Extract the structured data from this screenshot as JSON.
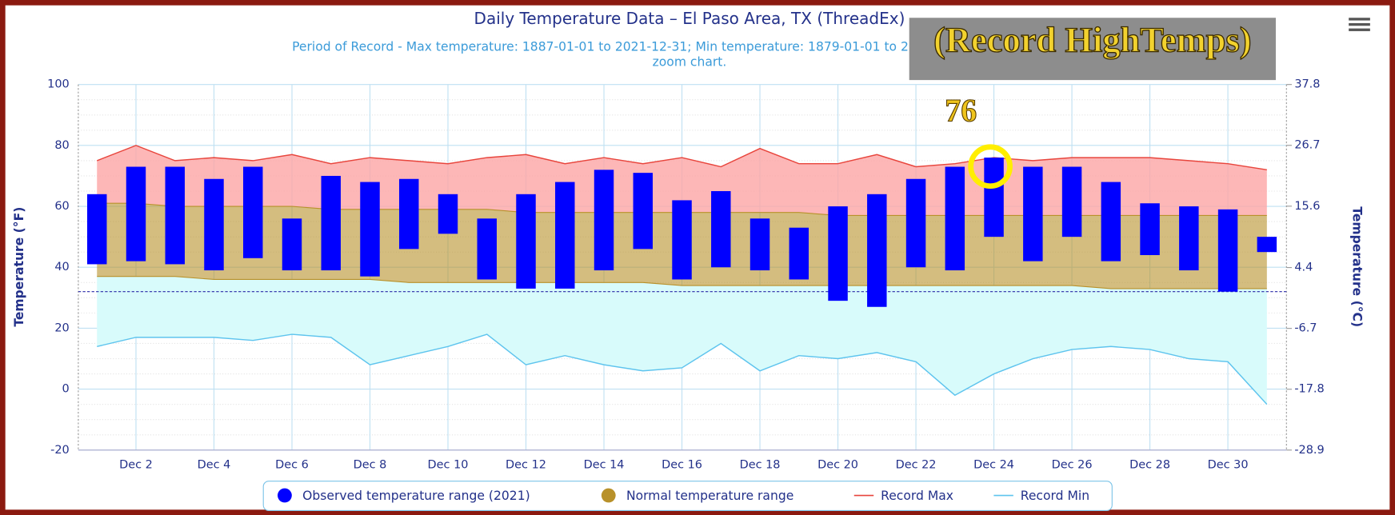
{
  "chart_data": {
    "type": "range",
    "title": "Daily Temperature Data – El Paso Area, TX (ThreadEx)",
    "subtitle": [
      "Period of Record - Max temperature: 1887-01-01 to 2021-12-31; Min temperature: 1879-01-01 to 2021-12-31. Click and drag to",
      "zoom chart."
    ],
    "y_label": "Temperature (°F)",
    "y2_label": "Temperature (°C)",
    "categories": [
      null,
      "Dec 2",
      null,
      "Dec 4",
      null,
      "Dec 6",
      null,
      "Dec 8",
      null,
      "Dec 10",
      null,
      "Dec 12",
      null,
      "Dec 14",
      null,
      "Dec 16",
      null,
      "Dec 18",
      null,
      "Dec 20",
      null,
      "Dec 22",
      null,
      "Dec 24",
      null,
      "Dec 26",
      null,
      "Dec 28",
      null,
      "Dec 30",
      null
    ],
    "ylim": [
      -20,
      100
    ],
    "yticks": [
      -20,
      0,
      20,
      40,
      60,
      80,
      100
    ],
    "y2lim": [
      -28.9,
      37.8
    ],
    "y2ticks": [
      -28.9,
      -17.8,
      -6.7,
      4.4,
      15.6,
      26.7,
      37.8
    ],
    "freeze_line": 32,
    "grid": true,
    "legend": "bottom",
    "series": [
      {
        "name": "Observed temperature range (2021)",
        "color": "#0000ff",
        "low": [
          41,
          42,
          41,
          39,
          43,
          39,
          39,
          37,
          46,
          51,
          36,
          33,
          33,
          39,
          46,
          36,
          40,
          39,
          36,
          29,
          27,
          40,
          39,
          50,
          42,
          50,
          42,
          44,
          39,
          32,
          45
        ],
        "high": [
          64,
          73,
          73,
          69,
          73,
          56,
          70,
          68,
          69,
          64,
          56,
          64,
          68,
          72,
          71,
          62,
          65,
          56,
          53,
          60,
          64,
          69,
          73,
          76,
          73,
          73,
          68,
          61,
          60,
          59,
          50
        ]
      },
      {
        "name": "Normal temperature range",
        "color": "#b8912a",
        "low": [
          37,
          37,
          37,
          36,
          36,
          36,
          36,
          36,
          35,
          35,
          35,
          35,
          35,
          35,
          35,
          34,
          34,
          34,
          34,
          34,
          34,
          34,
          34,
          34,
          34,
          34,
          33,
          33,
          33,
          33,
          33
        ],
        "high": [
          61,
          61,
          60,
          60,
          60,
          60,
          59,
          59,
          59,
          59,
          59,
          58,
          58,
          58,
          58,
          58,
          58,
          58,
          58,
          57,
          57,
          57,
          57,
          57,
          57,
          57,
          57,
          57,
          57,
          57,
          57
        ]
      },
      {
        "name": "Record Max",
        "color": "#e8453c",
        "values": [
          75,
          80,
          75,
          76,
          75,
          77,
          74,
          76,
          75,
          74,
          76,
          77,
          74,
          76,
          74,
          76,
          73,
          79,
          74,
          74,
          77,
          73,
          74,
          76,
          75,
          76,
          76,
          76,
          75,
          74,
          72
        ]
      },
      {
        "name": "Record Min",
        "color": "#5ec4ee",
        "values": [
          14,
          17,
          17,
          17,
          16,
          18,
          17,
          8,
          11,
          14,
          18,
          8,
          11,
          8,
          6,
          7,
          15,
          6,
          11,
          10,
          12,
          9,
          -2,
          5,
          10,
          13,
          14,
          13,
          10,
          9,
          -5
        ]
      }
    ],
    "annotations": {
      "highlight": "(Record HighTemps)",
      "callout": "76"
    }
  }
}
